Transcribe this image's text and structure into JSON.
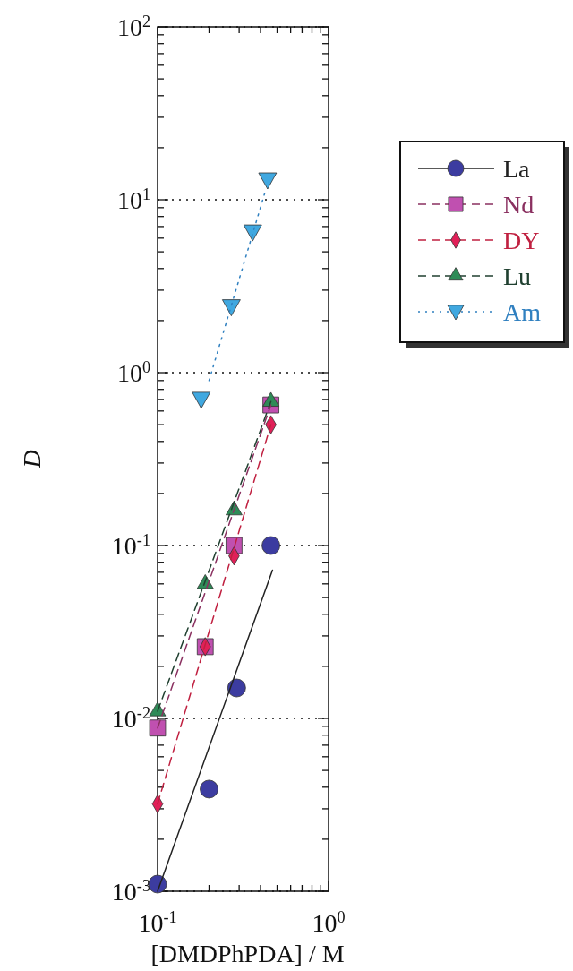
{
  "chart_data": {
    "type": "scatter",
    "xlabel": "[DMDPhPDA] / M",
    "ylabel": "D",
    "log": "xy",
    "grid": "y",
    "legend": "right",
    "xlim": [
      0.1,
      1
    ],
    "ylim": [
      0.001,
      100
    ],
    "xticks": [
      {
        "value": 0.1,
        "label": "10$^{-1}$"
      },
      {
        "value": 0.2,
        "label": null
      },
      {
        "value": 0.3,
        "label": null
      },
      {
        "value": 0.4,
        "label": null
      },
      {
        "value": 0.5,
        "label": null
      },
      {
        "value": 0.6,
        "label": null
      },
      {
        "value": 0.7,
        "label": null
      },
      {
        "value": 0.8,
        "label": null
      },
      {
        "value": 0.9,
        "label": null
      },
      {
        "value": 1,
        "label": "10$^{0}$"
      }
    ],
    "yticks": [
      {
        "value": 0.001,
        "label": "10$^{-3}$"
      },
      {
        "value": 0.002,
        "label": null
      },
      {
        "value": 0.003,
        "label": null
      },
      {
        "value": 0.004,
        "label": null
      },
      {
        "value": 0.005,
        "label": null
      },
      {
        "value": 0.006,
        "label": null
      },
      {
        "value": 0.007,
        "label": null
      },
      {
        "value": 0.008,
        "label": null
      },
      {
        "value": 0.009,
        "label": null
      },
      {
        "value": 0.01,
        "label": "10$^{-2}$"
      },
      {
        "value": 0.02,
        "label": null
      },
      {
        "value": 0.03,
        "label": null
      },
      {
        "value": 0.04,
        "label": null
      },
      {
        "value": 0.05,
        "label": null
      },
      {
        "value": 0.06,
        "label": null
      },
      {
        "value": 0.07,
        "label": null
      },
      {
        "value": 0.08,
        "label": null
      },
      {
        "value": 0.09,
        "label": null
      },
      {
        "value": 0.1,
        "label": "10$^{-1}$"
      },
      {
        "value": 0.2,
        "label": null
      },
      {
        "value": 0.3,
        "label": null
      },
      {
        "value": 0.4,
        "label": null
      },
      {
        "value": 0.5,
        "label": null
      },
      {
        "value": 0.6,
        "label": null
      },
      {
        "value": 0.7,
        "label": null
      },
      {
        "value": 0.8,
        "label": null
      },
      {
        "value": 0.9,
        "label": null
      },
      {
        "value": 1,
        "label": "10$^{0}$"
      },
      {
        "value": 2,
        "label": null
      },
      {
        "value": 3,
        "label": null
      },
      {
        "value": 4,
        "label": null
      },
      {
        "value": 5,
        "label": null
      },
      {
        "value": 6,
        "label": null
      },
      {
        "value": 7,
        "label": null
      },
      {
        "value": 8,
        "label": null
      },
      {
        "value": 9,
        "label": null
      },
      {
        "value": 10,
        "label": "10$^{1}$"
      },
      {
        "value": 20,
        "label": null
      },
      {
        "value": 30,
        "label": null
      },
      {
        "value": 40,
        "label": null
      },
      {
        "value": 50,
        "label": null
      },
      {
        "value": 60,
        "label": null
      },
      {
        "value": 70,
        "label": null
      },
      {
        "value": 80,
        "label": null
      },
      {
        "value": 90,
        "label": null
      },
      {
        "value": 100,
        "label": "10$^{2}$"
      }
    ],
    "series": [
      {
        "name": "La",
        "marker": "circle",
        "line_style": "solid",
        "color": "#3c3ca0",
        "x": [
          0.1,
          0.2,
          0.29,
          0.46
        ],
        "values": [
          0.0011,
          0.0039,
          0.015,
          0.1
        ]
      },
      {
        "name": "Nd",
        "marker": "square",
        "line_style": "dashed",
        "color": "#c050b0",
        "x": [
          0.1,
          0.19,
          0.28,
          0.46
        ],
        "values": [
          0.0088,
          0.026,
          0.1,
          0.65
        ]
      },
      {
        "name": "DY",
        "marker": "diamond",
        "line_style": "dashed",
        "color": "#e02058",
        "x": [
          0.1,
          0.19,
          0.28,
          0.46
        ],
        "values": [
          0.0032,
          0.026,
          0.087,
          0.5
        ]
      },
      {
        "name": "Lu",
        "marker": "triangle",
        "line_style": "dashed",
        "color": "#2e8b57",
        "x": [
          0.1,
          0.19,
          0.28,
          0.46
        ],
        "values": [
          0.011,
          0.06,
          0.16,
          0.68
        ]
      },
      {
        "name": "Am",
        "marker": "triangle-down",
        "line_style": "dotted",
        "color": "#40a8e0",
        "x": [
          0.18,
          0.27,
          0.36,
          0.44
        ],
        "values": [
          0.7,
          2.4,
          6.5,
          13
        ]
      },
      {
        "type": "line",
        "line_style": "solid",
        "color": "#222222",
        "x": [
          0.1,
          0.47
        ],
        "values": [
          0.001,
          0.072
        ]
      },
      {
        "type": "line",
        "line_style": "dashed",
        "color": "#8a3060",
        "x": [
          0.1,
          0.46
        ],
        "values": [
          0.0088,
          0.65
        ]
      },
      {
        "type": "line",
        "line_style": "dashed",
        "color": "#c02040",
        "x": [
          0.1,
          0.46
        ],
        "values": [
          0.0032,
          0.5
        ]
      },
      {
        "type": "line",
        "line_style": "dashed",
        "color": "#204030",
        "x": [
          0.1,
          0.46
        ],
        "values": [
          0.011,
          0.68
        ]
      },
      {
        "type": "line",
        "line_style": "dotted",
        "color": "#3080c0",
        "x": [
          0.2,
          0.43
        ],
        "values": [
          0.9,
          11.5
        ]
      }
    ]
  }
}
